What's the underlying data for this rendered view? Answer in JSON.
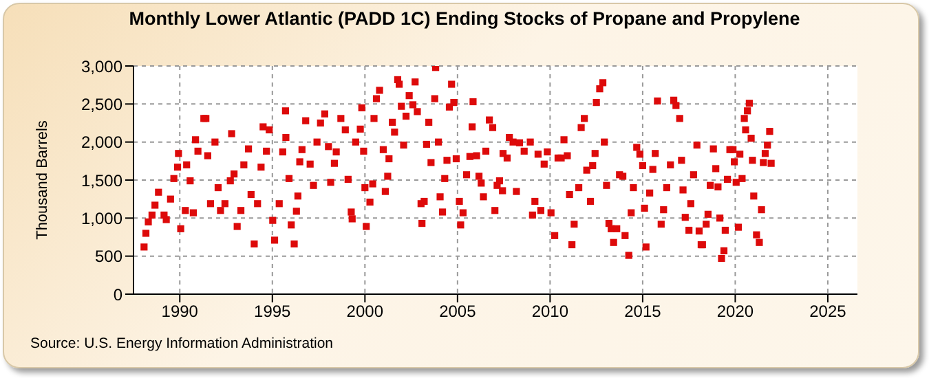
{
  "chart_data": {
    "type": "scatter",
    "title": "Monthly Lower Atlantic (PADD 1C) Ending Stocks of Propane and Propylene",
    "ylabel": "Thousand Barrels",
    "annotations": [
      "Source: U.S. Energy Information Administration"
    ],
    "xlim": [
      1987.5,
      2026.6
    ],
    "xticks": [
      1990,
      1995,
      2000,
      2005,
      2010,
      2015,
      2020,
      2025
    ],
    "ylim": [
      0,
      3000
    ],
    "yticks": [
      0,
      500,
      {
        "value": 1000,
        "label": "1,000"
      },
      {
        "value": 1500,
        "label": "1,500"
      },
      {
        "value": 2000,
        "label": "2,000"
      },
      {
        "value": 2500,
        "label": "2,500"
      },
      {
        "value": 3000,
        "label": "3,000"
      }
    ],
    "grid": true,
    "marker": "square",
    "series": [
      {
        "color": "#dd0a0a",
        "x": [
          1988.07,
          1988.17,
          1988.3,
          1988.5,
          1988.66,
          1988.85,
          1989.15,
          1989.27,
          1989.5,
          1989.68,
          1989.88,
          1989.93,
          1990.05,
          1990.3,
          1990.37,
          1990.56,
          1990.73,
          1990.85,
          1990.98,
          1991.3,
          1991.41,
          1991.51,
          1991.66,
          1991.9,
          1992.07,
          1992.2,
          1992.44,
          1992.73,
          1992.8,
          1992.93,
          1993.1,
          1993.3,
          1993.46,
          1993.71,
          1993.85,
          1994.02,
          1994.2,
          1994.39,
          1994.5,
          1994.68,
          1994.83,
          1995.02,
          1995.12,
          1995.37,
          1995.56,
          1995.73,
          1995.71,
          1995.9,
          1996.02,
          1996.18,
          1996.3,
          1996.38,
          1996.48,
          1996.6,
          1996.8,
          1997.04,
          1997.22,
          1997.41,
          1997.6,
          1997.83,
          1998.03,
          1998.15,
          1998.35,
          1998.45,
          1998.7,
          1998.94,
          1999.09,
          1999.26,
          1999.31,
          1999.5,
          1999.75,
          1999.83,
          1999.93,
          2000.0,
          2000.07,
          2000.27,
          2000.42,
          2000.49,
          2000.62,
          2000.79,
          2000.99,
          2001.1,
          2001.23,
          2001.3,
          2001.48,
          2001.6,
          2001.77,
          2001.85,
          2001.97,
          2002.09,
          2002.22,
          2002.39,
          2002.59,
          2002.71,
          2002.83,
          2003.03,
          2003.08,
          2003.2,
          2003.33,
          2003.45,
          2003.57,
          2003.77,
          2003.82,
          2003.97,
          2004.06,
          2004.19,
          2004.31,
          2004.43,
          2004.56,
          2004.68,
          2004.8,
          2004.93,
          2005.1,
          2005.17,
          2005.3,
          2005.49,
          2005.67,
          2005.79,
          2005.84,
          2006.03,
          2006.16,
          2006.28,
          2006.4,
          2006.53,
          2006.72,
          2006.9,
          2007.02,
          2007.14,
          2007.27,
          2007.43,
          2007.46,
          2007.68,
          2007.8,
          2008.0,
          2008.18,
          2008.35,
          2008.6,
          2008.93,
          2009.05,
          2009.18,
          2009.35,
          2009.5,
          2009.68,
          2009.85,
          2010.05,
          2010.25,
          2010.43,
          2010.6,
          2010.75,
          2010.93,
          2011.05,
          2011.18,
          2011.3,
          2011.55,
          2011.68,
          2011.85,
          2011.98,
          2012.18,
          2012.3,
          2012.43,
          2012.5,
          2012.68,
          2012.85,
          2012.93,
          2013.05,
          2013.18,
          2013.3,
          2013.43,
          2013.6,
          2013.75,
          2013.93,
          2014.05,
          2014.25,
          2014.38,
          2014.5,
          2014.68,
          2014.85,
          2015.0,
          2015.1,
          2015.18,
          2015.38,
          2015.55,
          2015.68,
          2015.8,
          2016.0,
          2016.13,
          2016.3,
          2016.5,
          2016.68,
          2016.8,
          2017.0,
          2017.1,
          2017.18,
          2017.3,
          2017.5,
          2017.6,
          2017.75,
          2017.93,
          2018.05,
          2018.16,
          2018.23,
          2018.43,
          2018.53,
          2018.65,
          2018.82,
          2018.95,
          2019.07,
          2019.17,
          2019.26,
          2019.39,
          2019.46,
          2019.58,
          2019.71,
          2019.88,
          2019.95,
          2020.05,
          2020.17,
          2020.25,
          2020.37,
          2020.49,
          2020.56,
          2020.66,
          2020.76,
          2020.86,
          2020.93,
          2021.0,
          2021.15,
          2021.3,
          2021.42,
          2021.52,
          2021.62,
          2021.74,
          2021.86,
          2021.94
        ],
        "values": [
          620,
          800,
          950,
          1040,
          1170,
          1340,
          1040,
          980,
          1250,
          1520,
          1670,
          1850,
          860,
          1100,
          1700,
          1490,
          1070,
          2030,
          1880,
          2310,
          2310,
          1820,
          1190,
          2000,
          1400,
          1100,
          1190,
          1490,
          2110,
          1580,
          890,
          1100,
          1700,
          1910,
          1310,
          660,
          1190,
          1670,
          2200,
          1880,
          2160,
          970,
          710,
          1190,
          1870,
          2060,
          2410,
          1520,
          910,
          660,
          1090,
          1290,
          1740,
          1900,
          2280,
          1710,
          1430,
          2000,
          2250,
          2370,
          1940,
          1470,
          1720,
          1870,
          2310,
          2160,
          1510,
          1080,
          990,
          2000,
          2170,
          2450,
          1880,
          1400,
          890,
          1210,
          1450,
          2310,
          2570,
          2680,
          1900,
          1350,
          1550,
          1780,
          2260,
          2130,
          2820,
          2760,
          2470,
          1960,
          2340,
          2610,
          2490,
          2790,
          2400,
          1190,
          930,
          1220,
          1970,
          2260,
          1730,
          2570,
          2980,
          2000,
          1280,
          1080,
          1520,
          1760,
          2460,
          2760,
          2520,
          1780,
          1220,
          910,
          1070,
          1570,
          1810,
          2200,
          2530,
          1820,
          1550,
          1460,
          1280,
          1880,
          2290,
          2190,
          1100,
          1430,
          1490,
          1360,
          1850,
          1790,
          2060,
          2000,
          1350,
          1990,
          1880,
          2000,
          1040,
          1220,
          1840,
          1100,
          1710,
          1870,
          1070,
          770,
          1790,
          1790,
          2030,
          1820,
          1310,
          650,
          920,
          1400,
          2190,
          2310,
          1630,
          1220,
          1690,
          1850,
          2520,
          2700,
          2780,
          2000,
          1430,
          930,
          860,
          680,
          860,
          1570,
          1550,
          770,
          510,
          1070,
          1400,
          1930,
          1840,
          1690,
          1130,
          620,
          1330,
          1640,
          1850,
          2540,
          920,
          1110,
          1400,
          1700,
          2550,
          2480,
          2310,
          1760,
          1370,
          1010,
          840,
          1190,
          1570,
          1960,
          830,
          650,
          650,
          920,
          1050,
          1430,
          1910,
          1650,
          1410,
          1000,
          470,
          570,
          840,
          1510,
          1900,
          1900,
          1740,
          1470,
          880,
          1840,
          1520,
          2310,
          2160,
          2410,
          2510,
          2050,
          1760,
          1290,
          780,
          680,
          1110,
          1730,
          1850,
          1960,
          2140,
          1720
        ]
      }
    ]
  }
}
